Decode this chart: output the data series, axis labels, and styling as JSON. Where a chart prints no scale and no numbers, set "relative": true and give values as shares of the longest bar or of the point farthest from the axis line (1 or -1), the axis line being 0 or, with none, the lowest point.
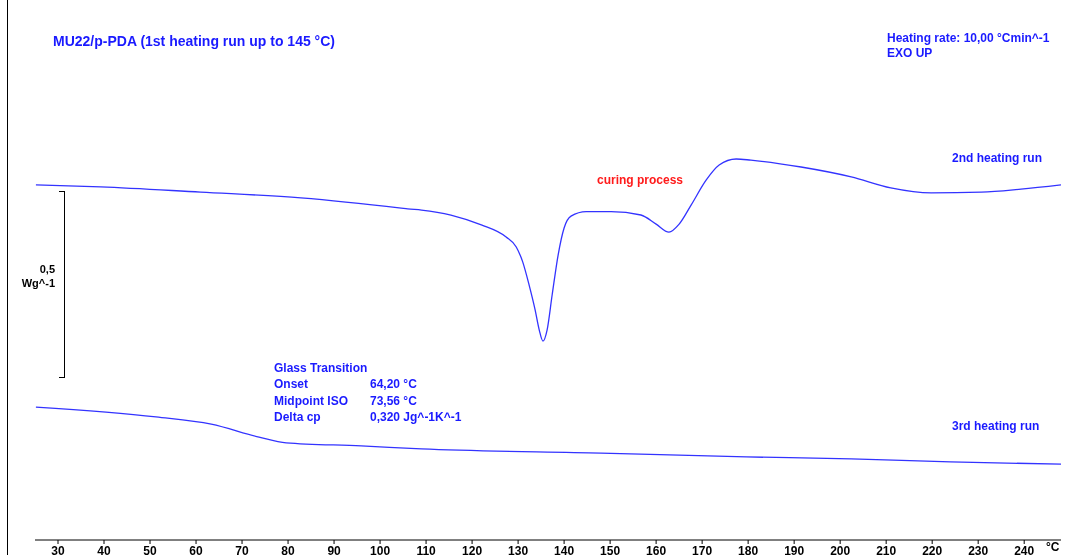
{
  "chart_data": {
    "type": "line",
    "title": "MU22/p-PDA (1st heating run up to 145 °C)",
    "xlabel": "°C",
    "ylabel": "0,5 Wg^-1",
    "relative": true,
    "xlim": [
      25,
      248
    ],
    "xticks": [
      30,
      40,
      50,
      60,
      70,
      80,
      90,
      100,
      110,
      120,
      130,
      140,
      150,
      160,
      170,
      180,
      190,
      200,
      210,
      220,
      230,
      240
    ],
    "series": [
      {
        "name": "2nd heating run",
        "color": "#3333ff",
        "x": [
          25.2,
          39.3,
          61,
          82.8,
          104.6,
          106,
          109,
          115.4,
          122,
          127.4,
          129.6,
          131,
          132.4,
          133.7,
          134.6,
          135.4,
          136.3,
          137.4,
          138.7,
          140,
          141.5,
          144.8,
          150.2,
          156.7,
          160,
          162.8,
          165,
          167.6,
          170.9,
          173.7,
          177.4,
          180.6,
          191.5,
          202.4,
          211,
          219.8,
          230.7,
          239.3,
          248
        ],
        "values": [
          0.932,
          0.927,
          0.913,
          0.898,
          0.871,
          0.869,
          0.866,
          0.853,
          0.827,
          0.795,
          0.769,
          0.73,
          0.669,
          0.604,
          0.551,
          0.522,
          0.551,
          0.643,
          0.748,
          0.819,
          0.85,
          0.862,
          0.862,
          0.853,
          0.829,
          0.808,
          0.829,
          0.879,
          0.945,
          0.984,
          1,
          0.997,
          0.979,
          0.953,
          0.924,
          0.911,
          0.913,
          0.921,
          0.932
        ]
      },
      {
        "name": "3rd heating run",
        "color": "#3333ff",
        "x": [
          25.2,
          51.3,
          63.3,
          73.7,
          79.6,
          95.9,
          109,
          148,
          179.6,
          202.4,
          224,
          248
        ],
        "values": [
          0.349,
          0.323,
          0.304,
          0.27,
          0.255,
          0.247,
          0.239,
          0.228,
          0.218,
          0.213,
          0.205,
          0.199
        ]
      }
    ],
    "annotations": [
      "Heating rate:  10,00 °Cmin^-1",
      "EXO UP",
      "curing process",
      "Glass Transition",
      "Onset",
      "64,20 °C",
      "Midpoint ISO",
      "73,56 °C",
      "Delta cp",
      "0,320 Jg^-1K^-1"
    ],
    "legend": false,
    "marker": "none",
    "line_style": "solid"
  }
}
